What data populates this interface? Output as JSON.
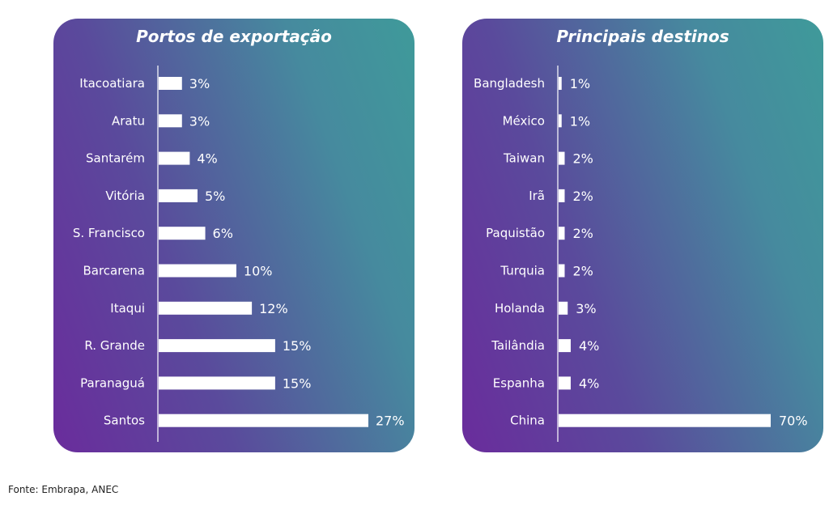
{
  "chart_data": [
    {
      "type": "bar",
      "orientation": "horizontal",
      "title": "Portos de exportação",
      "categories": [
        "Itacoatiara",
        "Aratu",
        "Santarém",
        "Vitória",
        "S. Francisco",
        "Barcarena",
        "Itaqui",
        "R. Grande",
        "Paranaguá",
        "Santos"
      ],
      "values": [
        3,
        3,
        4,
        5,
        6,
        10,
        12,
        15,
        15,
        27
      ],
      "labels": [
        "3%",
        "3%",
        "4%",
        "5%",
        "6%",
        "10%",
        "12%",
        "15%",
        "15%",
        "27%"
      ],
      "unit": "%",
      "xlim": [
        0,
        27
      ],
      "grid": false,
      "bar_color": "#ffffff"
    },
    {
      "type": "bar",
      "orientation": "horizontal",
      "title": "Principais destinos",
      "categories": [
        "Bangladesh",
        "México",
        "Taiwan",
        "Irã",
        "Paquistão",
        "Turquia",
        "Holanda",
        "Tailândia",
        "Espanha",
        "China"
      ],
      "values": [
        1,
        1,
        2,
        2,
        2,
        2,
        3,
        4,
        4,
        70
      ],
      "labels": [
        "1%",
        "1%",
        "2%",
        "2%",
        "2%",
        "2%",
        "3%",
        "4%",
        "4%",
        "70%"
      ],
      "unit": "%",
      "xlim": [
        0,
        70
      ],
      "grid": false,
      "bar_color": "#ffffff"
    }
  ],
  "source": "Fonte: Embrapa, ANEC",
  "colors": {
    "gradient_start": "#6a2c9c",
    "gradient_end": "#3f9a9a",
    "text": "#ffffff"
  }
}
